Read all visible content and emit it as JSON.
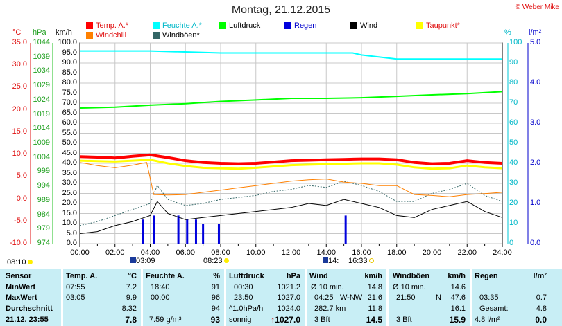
{
  "title": "Montag, 21.12.2015",
  "credit": "© Weber Mike",
  "axis_units": {
    "temp": "°C",
    "pressure": "hPa",
    "wind": "km/h",
    "humidity": "%",
    "rain": "l/m²"
  },
  "legend": [
    {
      "label": "Temp. A.*",
      "color": "#ff0000"
    },
    {
      "label": "Feuchte A.*",
      "color": "#00ffff"
    },
    {
      "label": "Luftdruck",
      "color": "#00ff00"
    },
    {
      "label": "Regen",
      "color": "#0000dd"
    },
    {
      "label": "Wind",
      "color": "#000000"
    },
    {
      "label": "Taupunkt*",
      "color": "#ffff00"
    },
    {
      "label": "Windchill",
      "color": "#ff8000"
    },
    {
      "label": "Windböen*",
      "color": "#336666"
    }
  ],
  "axis_ticks": {
    "temp": [
      "35.0",
      "30.0",
      "25.0",
      "20.0",
      "15.0",
      "10.0",
      "5.0",
      "0.0",
      "-5.0",
      "-10.0"
    ],
    "pressure": [
      "1044",
      "1039",
      "1034",
      "1029",
      "1024",
      "1019",
      "1014",
      "1009",
      "1004",
      "999",
      "994",
      "989",
      "984",
      "979",
      "974"
    ],
    "wind": [
      "100.0",
      "95.0",
      "90.0",
      "85.0",
      "80.0",
      "75.0",
      "70.0",
      "65.0",
      "60.0",
      "55.0",
      "50.0",
      "45.0",
      "40.0",
      "35.0",
      "30.0",
      "25.0",
      "20.0",
      "15.0",
      "10.0",
      "5.0",
      "0.0"
    ],
    "humidity": [
      "100",
      "90",
      "80",
      "70",
      "60",
      "50",
      "40",
      "30",
      "20",
      "10",
      "0"
    ],
    "rain": [
      "5.0",
      "4.0",
      "3.0",
      "2.0",
      "1.0",
      "0.0"
    ],
    "time": [
      "00:00",
      "02:00",
      "04:00",
      "06:00",
      "08:00",
      "10:00",
      "12:00",
      "14:00",
      "16:00",
      "18:00",
      "20:00",
      "22:00",
      "24:00"
    ]
  },
  "time_markers": {
    "sunrise_left": "08:10",
    "moonrise": "03:09",
    "sunrise": "08:23",
    "moonset": "14:",
    "sunset": "16:33"
  },
  "stats": {
    "sensor": {
      "header": "Sensor",
      "min": "MinWert",
      "max": "MaxWert",
      "avg": "Durchschnitt",
      "now": "21.12. 23:55"
    },
    "temp": {
      "header": "Temp. A.",
      "unit": "°C",
      "min_time": "07:55",
      "min": "7.2",
      "max_time": "03:05",
      "max": "9.9",
      "avg": "8.32",
      "now": "7.8"
    },
    "humidity": {
      "header": "Feuchte A.",
      "unit": "%",
      "min_time": "18:40",
      "min": "91",
      "max_time": "00:00",
      "max": "96",
      "avg": "94",
      "abs": "7.59 g/m³",
      "now": "93"
    },
    "pressure": {
      "header": "Luftdruck",
      "unit": "hPa",
      "min_time": "00:30",
      "min": "1021.2",
      "max_time": "23:50",
      "max": "1027.0",
      "trend_label": "^1.0hPa/h",
      "trend": "1024.0",
      "weather": "sonnig",
      "now_arrow": "↑",
      "now": "1027.0"
    },
    "wind": {
      "header": "Wind",
      "unit": "km/h",
      "l1": "Ø 10 min.",
      "v1": "14.8",
      "l2": "04:25",
      "d2": "W-NW",
      "v2": "21.6",
      "l3": "282.7 km",
      "v3": "11.8",
      "l4": "3 Bft",
      "v4": "14.5"
    },
    "gust": {
      "header": "Windböen",
      "unit": "km/h",
      "l1": "Ø 10 min.",
      "v1": "14.6",
      "l2": "21:50",
      "d2": "N",
      "v2": "47.6",
      "v3": "16.1",
      "l4": "3 Bft",
      "v4": "15.9"
    },
    "rain": {
      "header": "Regen",
      "unit": "l/m²",
      "l2": "03:35",
      "v2": "0.7",
      "l3": "Gesamt:",
      "v3": "4.8",
      "l4": "4.8 l/m²",
      "v4": "0.0"
    }
  },
  "chart_data": {
    "type": "line",
    "title": "Montag, 21.12.2015",
    "x_unit": "hours",
    "xlim": [
      0,
      24
    ],
    "ylim_temp": [
      -10,
      35
    ],
    "ylim_pressure": [
      974,
      1044
    ],
    "ylim_wind": [
      0,
      100
    ],
    "ylim_humidity": [
      0,
      100
    ],
    "ylim_rain": [
      0,
      5
    ],
    "grid": true,
    "series": [
      {
        "name": "Temp. A.*",
        "color": "#ff0000",
        "axis": "temp",
        "x": [
          0,
          1,
          2,
          3,
          4,
          5,
          6,
          7,
          8,
          9,
          10,
          11,
          12,
          13,
          14,
          15,
          16,
          17,
          18,
          19,
          20,
          21,
          22,
          23,
          24
        ],
        "y": [
          9.5,
          9.4,
          9.2,
          9.6,
          9.9,
          9.3,
          8.6,
          8.2,
          8.0,
          7.9,
          8.0,
          8.3,
          8.6,
          8.7,
          8.8,
          8.9,
          9.0,
          9.0,
          8.8,
          8.2,
          7.9,
          8.0,
          8.6,
          8.2,
          8.0
        ]
      },
      {
        "name": "Feuchte A.*",
        "color": "#00ffff",
        "axis": "humidity",
        "x": [
          0,
          4,
          8,
          12,
          15.5,
          16,
          18,
          19,
          20,
          22,
          24
        ],
        "y": [
          96,
          96,
          95,
          95,
          95,
          94,
          92,
          92,
          92,
          92,
          92
        ]
      },
      {
        "name": "Luftdruck",
        "color": "#00ff00",
        "axis": "pressure",
        "x": [
          0,
          2,
          4,
          6,
          8,
          10,
          12,
          14,
          16,
          18,
          20,
          22,
          24
        ],
        "y": [
          1021.3,
          1021.6,
          1022.3,
          1022.8,
          1023.6,
          1024.1,
          1024.7,
          1024.7,
          1024.9,
          1025.4,
          1025.9,
          1026.3,
          1027.0
        ]
      },
      {
        "name": "Taupunkt*",
        "color": "#ffff00",
        "axis": "temp",
        "x": [
          0,
          1,
          2,
          3,
          4,
          5,
          6,
          7,
          8,
          9,
          10,
          11,
          12,
          13,
          14,
          15,
          16,
          17,
          18,
          19,
          20,
          21,
          22,
          23,
          24
        ],
        "y": [
          8.6,
          8.5,
          8.4,
          8.6,
          8.8,
          8.0,
          7.4,
          7.0,
          6.9,
          6.8,
          7.0,
          7.3,
          7.6,
          7.7,
          7.8,
          7.9,
          8.0,
          8.0,
          7.7,
          7.1,
          6.8,
          6.9,
          7.5,
          7.1,
          6.9
        ]
      },
      {
        "name": "Windchill",
        "color": "#ff8000",
        "axis": "temp",
        "x": [
          0,
          1,
          2,
          3,
          3.8,
          4.2,
          5,
          6,
          7,
          8,
          9,
          10,
          11,
          12,
          13,
          14,
          15,
          16,
          17,
          18,
          19,
          20,
          21,
          22,
          23,
          24
        ],
        "y": [
          8.2,
          7.5,
          7.0,
          7.6,
          8.2,
          1.0,
          0.9,
          1.0,
          1.5,
          2.0,
          2.5,
          3.0,
          3.5,
          4.0,
          4.3,
          4.5,
          3.8,
          3.5,
          3.0,
          3.0,
          1.0,
          0.8,
          0.5,
          1.0,
          1.2,
          1.5
        ]
      },
      {
        "name": "Wind",
        "color": "#000000",
        "axis": "wind",
        "x": [
          0,
          1,
          2,
          3,
          4,
          4.4,
          5,
          6,
          7,
          8,
          9,
          10,
          11,
          12,
          13,
          14,
          15,
          16,
          17,
          18,
          19,
          20,
          21,
          22,
          23,
          24
        ],
        "y": [
          5,
          6,
          9,
          11,
          14,
          21,
          15,
          12,
          13,
          14,
          15,
          16,
          17,
          18,
          20,
          19,
          22,
          20,
          18,
          14,
          13,
          17,
          19,
          21,
          16,
          13
        ]
      },
      {
        "name": "Windböen*",
        "color": "#336666",
        "axis": "wind",
        "x": [
          0,
          1,
          2,
          3,
          4,
          4.4,
          5,
          6,
          7,
          8,
          9,
          10,
          11,
          12,
          13,
          14,
          15,
          16,
          17,
          18,
          19,
          20,
          21,
          22,
          23,
          24
        ],
        "y": [
          9,
          11,
          14,
          17,
          20,
          29,
          22,
          19,
          20,
          22,
          23,
          24,
          26,
          27,
          29,
          28,
          31,
          29,
          26,
          21,
          21,
          25,
          27,
          30,
          24,
          21
        ]
      },
      {
        "name": "Regen",
        "color": "#0000dd",
        "axis": "rain",
        "type": "bar",
        "x": [
          3.6,
          4.2,
          5.6,
          6.1,
          6.6,
          7.0,
          7.9,
          15.1
        ],
        "y": [
          0.6,
          0.7,
          0.7,
          0.6,
          0.6,
          0.5,
          0.5,
          0.7
        ]
      }
    ]
  }
}
